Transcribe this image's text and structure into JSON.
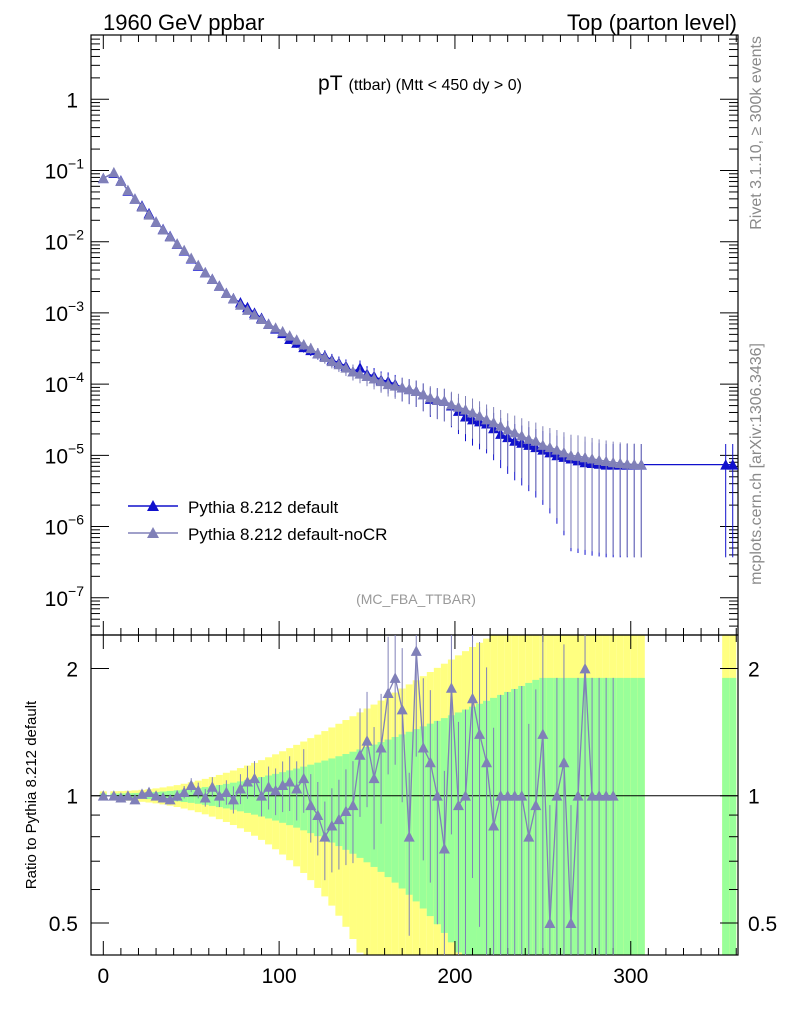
{
  "header": {
    "left": "1960 GeV ppbar",
    "right": "Top (parton level)"
  },
  "side_labels": {
    "rivet": "Rivet 3.1.10, ≥ 300k events",
    "mcplots": "mcplots.cern.ch [arXiv:1306.3436]"
  },
  "colors": {
    "default": "#1010cc",
    "nocr": "#8080b8",
    "band_yellow": "#ffff80",
    "band_green": "#99ff99"
  },
  "chart_data": [
    {
      "type": "line",
      "title_main": "pT",
      "title_sub": "(ttbar) (Mtt < 450 dy > 0)",
      "analysis_tag": "(MC_FBA_TTBAR)",
      "xlabel": "",
      "ylabel": "",
      "yscale": "log",
      "xlim": [
        -7,
        361
      ],
      "ylim": [
        3e-08,
        8
      ],
      "ytick_labels": [
        "1",
        "10",
        "10",
        "10",
        "10",
        "10",
        "10",
        "10"
      ],
      "ytick_exponents": [
        "",
        "−1",
        "−2",
        "−3",
        "−4",
        "−5",
        "−6",
        "−7"
      ],
      "legend": [
        "Pythia 8.212 default",
        "Pythia 8.212 default-noCR"
      ],
      "legend_position": "lower-left",
      "series": [
        {
          "name": "Pythia 8.212 default",
          "x": [
            0,
            6,
            10,
            14,
            18,
            22,
            26,
            30,
            34,
            38,
            42,
            46,
            50,
            54,
            58,
            62,
            66,
            70,
            74,
            78,
            82,
            86,
            90,
            94,
            98,
            102,
            106,
            110,
            114,
            118,
            122,
            126,
            130,
            134,
            138,
            142,
            146,
            150,
            154,
            158,
            162,
            166,
            170,
            174,
            178,
            182,
            186,
            190,
            194,
            198,
            202,
            206,
            210,
            214,
            218,
            222,
            226,
            230,
            234,
            238,
            242,
            246,
            250,
            254,
            258,
            262,
            266,
            270,
            274,
            278,
            282,
            286,
            290,
            294,
            298,
            302,
            306,
            354,
            358
          ],
          "y": [
            0.078,
            0.092,
            0.072,
            0.052,
            0.04,
            0.032,
            0.025,
            0.019,
            0.015,
            0.012,
            0.0093,
            0.0075,
            0.0058,
            0.0046,
            0.0037,
            0.003,
            0.0024,
            0.0019,
            0.0016,
            0.0014,
            0.0012,
            0.001,
            0.00085,
            0.0007,
            0.0006,
            0.00052,
            0.00043,
            0.00038,
            0.00033,
            0.0003,
            0.00027,
            0.00025,
            0.00022,
            0.0002,
            0.00018,
            0.00015,
            0.00017,
            0.00014,
            0.00013,
            0.000115,
            0.00011,
            0.0001,
            9e-05,
            8.5e-05,
            8e-05,
            7.2e-05,
            6.2e-05,
            6e-05,
            5.8e-05,
            5e-05,
            4.2e-05,
            3.5e-05,
            3.2e-05,
            3e-05,
            2.8e-05,
            2.4e-05,
            2e-05,
            1.8e-05,
            1.6e-05,
            1.5e-05,
            1.4e-05,
            1.3e-05,
            1.2e-05,
            1.1e-05,
            1e-05,
            9.5e-06,
            9e-06,
            8.5e-06,
            8e-06,
            7.8e-06,
            7.6e-06,
            7.4e-06,
            7.4e-06,
            7.4e-06,
            7.4e-06,
            7.4e-06,
            7.4e-06,
            7.4e-06,
            7.4e-06
          ]
        },
        {
          "name": "Pythia 8.212 default-noCR",
          "x": [
            0,
            6,
            10,
            14,
            18,
            22,
            26,
            30,
            34,
            38,
            42,
            46,
            50,
            54,
            58,
            62,
            66,
            70,
            74,
            78,
            82,
            86,
            90,
            94,
            98,
            102,
            106,
            110,
            114,
            118,
            122,
            126,
            130,
            134,
            138,
            142,
            146,
            150,
            154,
            158,
            162,
            166,
            170,
            174,
            178,
            182,
            186,
            190,
            194,
            198,
            202,
            206,
            210,
            214,
            218,
            222,
            226,
            230,
            234,
            238,
            242,
            246,
            250,
            254,
            258,
            262,
            266,
            270,
            274,
            278,
            282,
            286,
            290,
            294,
            298,
            302,
            306
          ],
          "y": [
            0.078,
            0.094,
            0.071,
            0.053,
            0.04,
            0.031,
            0.024,
            0.019,
            0.0148,
            0.0118,
            0.0094,
            0.0076,
            0.0059,
            0.0047,
            0.0037,
            0.003,
            0.0024,
            0.0019,
            0.0016,
            0.0013,
            0.0011,
            0.00095,
            0.00082,
            0.0007,
            0.00062,
            0.00055,
            0.00048,
            0.00042,
            0.00036,
            0.00032,
            0.00027,
            0.00024,
            0.00021,
            0.00019,
            0.00017,
            0.00015,
            0.00014,
            0.00013,
            0.00012,
            0.00011,
            0.0001,
            9.5e-05,
            9e-05,
            8.5e-05,
            8e-05,
            7.2e-05,
            6.5e-05,
            6e-05,
            5.8e-05,
            5.2e-05,
            4.8e-05,
            4.4e-05,
            4e-05,
            3.6e-05,
            3.2e-05,
            2.9e-05,
            2.6e-05,
            2.3e-05,
            2.1e-05,
            1.9e-05,
            1.7e-05,
            1.6e-05,
            1.4e-05,
            1.3e-05,
            1.2e-05,
            1.1e-05,
            1e-05,
            9.8e-06,
            9.4e-06,
            9e-06,
            8.6e-06,
            8.3e-06,
            8e-06,
            7.8e-06,
            7.6e-06,
            7.5e-06,
            7.4e-06
          ]
        }
      ]
    },
    {
      "type": "line",
      "ylabel": "Ratio to Pythia 8.212 default",
      "yscale": "log",
      "ylim": [
        0.42,
        2.4
      ],
      "xlim": [
        -7,
        361
      ],
      "xticks": [
        0,
        100,
        200,
        300
      ],
      "yticks": [
        0.5,
        1,
        2
      ],
      "ytick_labels": [
        "0.5",
        "1",
        "2"
      ],
      "reference_line": 1,
      "series": [
        {
          "name": "Pythia 8.212 default-noCR",
          "x": [
            0,
            6,
            10,
            14,
            18,
            22,
            26,
            30,
            34,
            38,
            42,
            46,
            50,
            54,
            58,
            62,
            66,
            70,
            74,
            78,
            82,
            86,
            90,
            94,
            98,
            102,
            106,
            110,
            114,
            118,
            122,
            126,
            130,
            134,
            138,
            142,
            146,
            150,
            154,
            158,
            162,
            166,
            170,
            174,
            178,
            182,
            186,
            190,
            194,
            198,
            202,
            206,
            210,
            214,
            218,
            222,
            226,
            230,
            234,
            238,
            242,
            246,
            250,
            254,
            258,
            262,
            266,
            270,
            274,
            278,
            282,
            286,
            290
          ],
          "y": [
            1.0,
            1.0,
            0.99,
            1.0,
            0.98,
            1.01,
            1.02,
            1.0,
            0.99,
            0.98,
            1.0,
            1.02,
            1.06,
            1.03,
            0.99,
            1.05,
            1.0,
            1.02,
            0.98,
            1.04,
            1.08,
            1.1,
            1.0,
            1.05,
            1.03,
            1.06,
            1.08,
            1.04,
            1.1,
            0.95,
            0.9,
            0.8,
            0.85,
            0.88,
            0.92,
            0.95,
            1.25,
            1.35,
            1.1,
            1.3,
            1.75,
            1.9,
            1.6,
            0.8,
            2.2,
            1.3,
            1.2,
            1.0,
            0.75,
            1.8,
            0.95,
            1.0,
            1.7,
            1.4,
            1.2,
            0.85,
            1.0,
            1.0,
            1.0,
            1.0,
            0.8,
            0.95,
            1.4,
            0.5,
            1.0,
            1.2,
            0.5,
            1.0,
            2.0,
            1.0,
            1.0,
            1.0,
            1.0
          ]
        }
      ]
    }
  ]
}
